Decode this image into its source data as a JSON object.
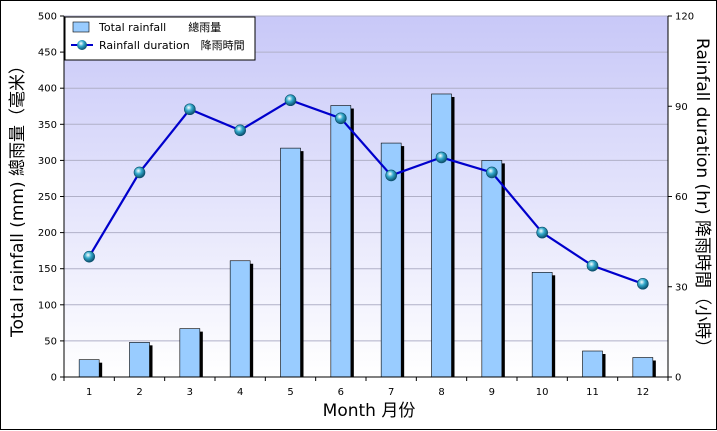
{
  "chart_data": {
    "type": "bar",
    "categories": [
      "1",
      "2",
      "3",
      "4",
      "5",
      "6",
      "7",
      "8",
      "9",
      "10",
      "11",
      "12"
    ],
    "series": [
      {
        "name": "Total rainfall　　總雨量",
        "type": "bar",
        "axis": "left",
        "values": [
          24,
          48,
          67,
          161,
          317,
          376,
          324,
          392,
          300,
          145,
          36,
          27
        ]
      },
      {
        "name": "Rainfall duration　降雨時間",
        "type": "line",
        "axis": "right",
        "values": [
          40,
          68,
          89,
          82,
          92,
          86,
          67,
          73,
          68,
          48,
          37,
          31
        ]
      }
    ],
    "xlabel": "Month 月份",
    "ylabel": "Total rainfall (mm) 總雨量（毫米）",
    "y2label": "Rainfall duration (hr) 降雨時間（小時）",
    "ylim": [
      0,
      500
    ],
    "y2lim": [
      0,
      120
    ],
    "yticks": [
      "0",
      "50",
      "100",
      "150",
      "200",
      "250",
      "300",
      "350",
      "400",
      "450",
      "500"
    ],
    "y2ticks": [
      "0",
      "30",
      "60",
      "90",
      "120"
    ],
    "grid": true,
    "legend": "top-left",
    "colors": {
      "bar_fill": "#99ccff",
      "bar_shadow": "#000000",
      "line": "#0000cc",
      "marker": "#33aacc",
      "plot_bg_top": "#c8c8f8",
      "plot_bg_bottom": "#ffffff"
    }
  }
}
